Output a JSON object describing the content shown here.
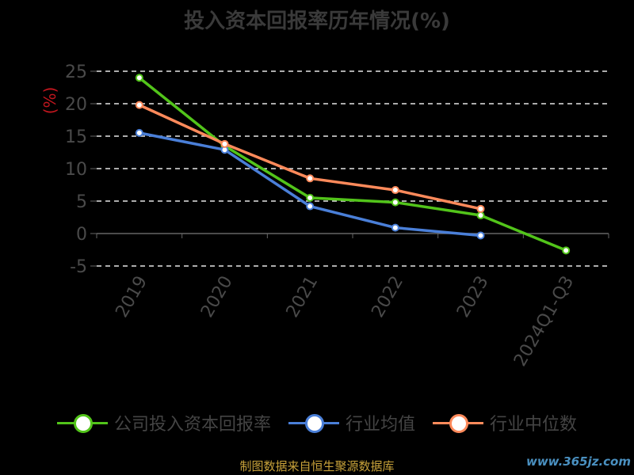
{
  "title": "投入资本回报率历年情况(%)",
  "source": "制图数据来自恒生聚源数据库",
  "watermark": "www.365jz.com",
  "chart_data": {
    "type": "line",
    "title": "投入资本回报率历年情况(%)",
    "ylabel": "(%)",
    "xlabel": "",
    "categories": [
      "2019",
      "2020",
      "2021",
      "2022",
      "2023",
      "2024Q1-Q3"
    ],
    "yticks": [
      -5,
      0,
      5,
      10,
      15,
      20,
      25
    ],
    "ylim": [
      -5,
      25
    ],
    "grid": true,
    "legend_position": "bottom",
    "series": [
      {
        "name": "公司投入资本回报率",
        "color": "#52c41a",
        "values": [
          24.0,
          13.5,
          5.5,
          4.8,
          2.8,
          -2.6
        ]
      },
      {
        "name": "行业均值",
        "color": "#4a7fd8",
        "values": [
          15.5,
          12.9,
          4.2,
          0.9,
          -0.3,
          null
        ]
      },
      {
        "name": "行业中位数",
        "color": "#ff8a5b",
        "values": [
          19.8,
          13.8,
          8.5,
          6.7,
          3.8,
          null
        ]
      }
    ]
  }
}
